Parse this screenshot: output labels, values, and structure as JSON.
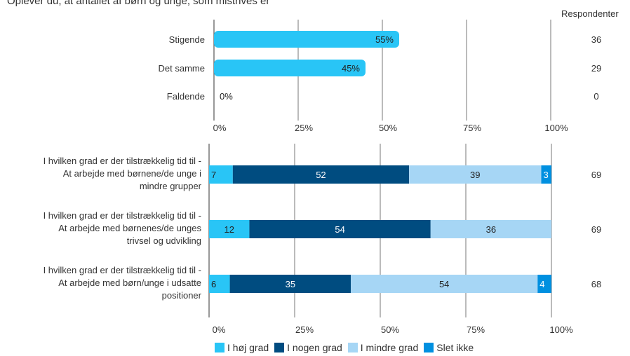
{
  "question_text": "Oplever du, at antallet af børn og unge, som mistrives er",
  "respondents_header": "Respondenter",
  "colors": {
    "i_hoej_grad": "#29C5F6",
    "i_nogen_grad": "#004C80",
    "i_mindre_grad": "#A6D6F5",
    "slet_ikke": "#0090E0",
    "gridline": "#555555"
  },
  "chart_data": [
    {
      "type": "bar",
      "orientation": "horizontal",
      "categories": [
        "Stigende",
        "Det samme",
        "Faldende"
      ],
      "values": [
        55,
        45,
        0
      ],
      "value_labels": [
        "55%",
        "45%",
        "0%"
      ],
      "respondents": [
        "36",
        "29",
        "0"
      ],
      "xlim": [
        0,
        100
      ],
      "xticks": [
        "0%",
        "25%",
        "50%",
        "75%",
        "100%"
      ],
      "grid": true
    },
    {
      "type": "bar",
      "orientation": "horizontal",
      "stacked": true,
      "normalized": true,
      "categories": [
        [
          "I hvilken grad er der tilstrækkelig tid til -",
          "At arbejde med børnene/de unge i",
          "mindre grupper"
        ],
        [
          "I hvilken grad er der tilstrækkelig tid til -",
          "At arbejde med børnenes/de unges",
          "trivsel og udvikling"
        ],
        [
          "I hvilken grad er der tilstrækkelig tid til -",
          "At arbejde med børn/unge i udsatte",
          "positioner"
        ]
      ],
      "series": [
        {
          "name": "I høj grad",
          "values": [
            7,
            12,
            6
          ]
        },
        {
          "name": "I nogen grad",
          "values": [
            52,
            54,
            35
          ]
        },
        {
          "name": "I mindre grad",
          "values": [
            39,
            36,
            54
          ]
        },
        {
          "name": "Slet ikke",
          "values": [
            3,
            0,
            4
          ]
        }
      ],
      "respondents": [
        "69",
        "69",
        "68"
      ],
      "xlim": [
        0,
        100
      ],
      "xticks": [
        "0%",
        "25%",
        "50%",
        "75%",
        "100%"
      ],
      "grid": true,
      "legend_position": "bottom"
    }
  ]
}
